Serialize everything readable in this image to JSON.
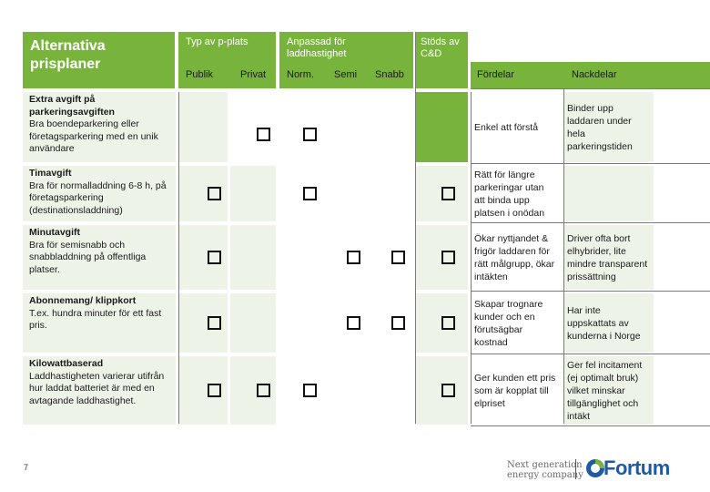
{
  "title": "Alternativa prisplaner",
  "headers": {
    "typ": "Typ av p-plats",
    "anpassad": "Anpassad för laddhastighet",
    "stods": "Stöds av C&D",
    "publik": "Publik",
    "privat": "Privat",
    "norm": "Norm.",
    "semi": "Semi",
    "snabb": "Snabb",
    "fordelar": "Fördelar",
    "nackdelar": "Nackdelar"
  },
  "checkbox_glyph": "checkbox-icon",
  "rows": [
    {
      "name": "Extra avgift på parkeringsavgiften",
      "desc": "Bra boendeparkering eller företagsparkering med en unik användare",
      "checks": {
        "publik": false,
        "privat": true,
        "norm": true,
        "semi": false,
        "snabb": false,
        "stods": false
      },
      "fordelar": "Enkel att förstå",
      "nackdelar": "Binder upp laddaren under hela parkeringstiden"
    },
    {
      "name": "Timavgift",
      "desc": "Bra för normalladdning 6-8 h, på företagsparkering (destinationsladdning)",
      "checks": {
        "publik": true,
        "privat": false,
        "norm": true,
        "semi": false,
        "snabb": false,
        "stods": true
      },
      "fordelar": "Rätt för längre parkeringar utan att binda upp platsen i onödan",
      "nackdelar": ""
    },
    {
      "name": "Minutavgift",
      "desc": "Bra för semisnabb och snabbladdning på offentliga platser.",
      "checks": {
        "publik": true,
        "privat": false,
        "norm": false,
        "semi": true,
        "snabb": true,
        "stods": true
      },
      "fordelar": "Ökar nyttjandet & frigör laddaren för rätt målgrupp, ökar intäkten",
      "nackdelar": "Driver ofta bort elhybrider, lite mindre transparent prissättning"
    },
    {
      "name": "Abonnemang/ klippkort",
      "desc": "T.ex. hundra minuter för ett fast pris.",
      "checks": {
        "publik": true,
        "privat": false,
        "norm": false,
        "semi": true,
        "snabb": true,
        "stods": true
      },
      "fordelar": "Skapar trognare kunder och en förutsägbar kostnad",
      "nackdelar": "Har inte uppskattats av kunderna i Norge"
    },
    {
      "name": "Kilowattbaserad",
      "desc": "Laddhastigheten varierar utifrån hur laddat batteriet är med en avtagande laddhastighet.",
      "checks": {
        "publik": true,
        "privat": true,
        "norm": true,
        "semi": false,
        "snabb": false,
        "stods": true
      },
      "fordelar": "Ger kunden ett pris som är kopplat till elpriset",
      "nackdelar": "Ger fel incitament (ej optimalt bruk) vilket minskar tillgänglighet och intäkt"
    }
  ],
  "footer": {
    "page_number": "7",
    "tagline_line1": "Next generation",
    "tagline_line2": "energy company",
    "logo_text": "Fortum",
    "logo_icon": "fortum-logo-icon"
  },
  "colors": {
    "green": "#78b43c",
    "light_green": "#eef3e8",
    "logo_blue": "#1e5aa8"
  }
}
